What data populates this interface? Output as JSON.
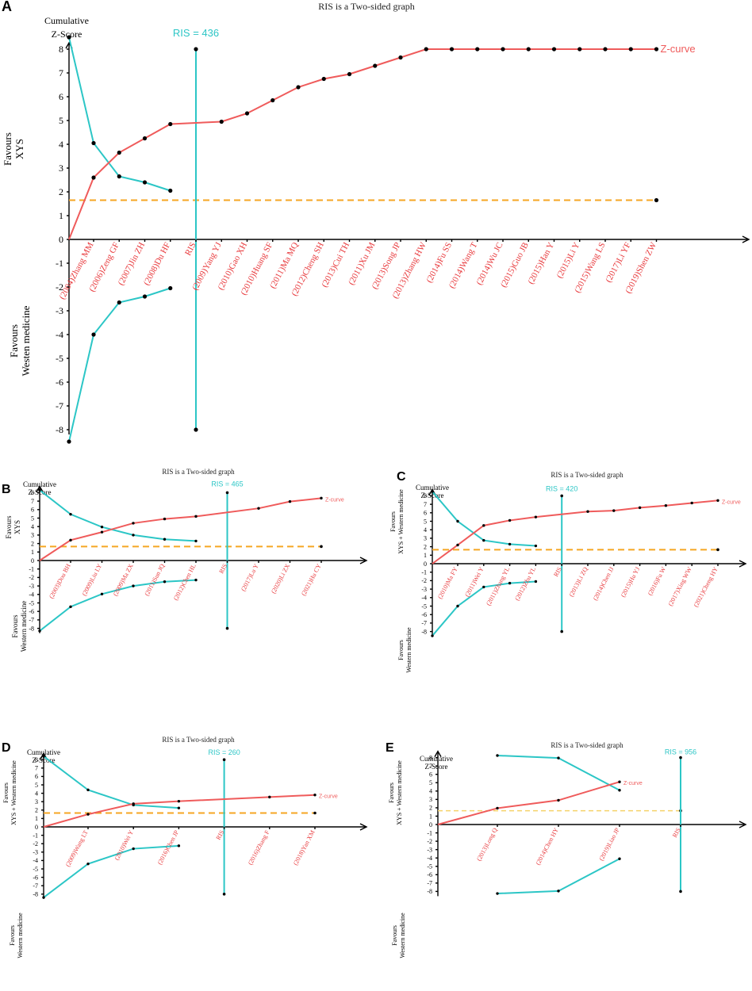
{
  "chart_data": [
    {
      "panel": "A",
      "type": "line",
      "title": "RIS is a Two-sided graph",
      "ylabel": "Cumulative Z-Score",
      "favours_upper": "Favours XYS",
      "favours_lower": "Westen medicine",
      "favours_lower_prefix": "Favours",
      "ylim": [
        -8,
        8
      ],
      "yticks": [
        -8,
        -7,
        -6,
        -5,
        -4,
        -3,
        -2,
        -1,
        0,
        1,
        2,
        3,
        4,
        5,
        6,
        7,
        8
      ],
      "categories": [
        "(2004)Zhang MM",
        "(2006)Zeng GF",
        "(2007)Jin ZH",
        "(2008)Du HF",
        "RIS",
        "(2009)Yang YJ",
        "(2010)Gao XH",
        "(2010)Huang SF",
        "(2011)Ma MQ",
        "(2012)Cheng SH",
        "(2013)Cui TH",
        "(2011)Xu JM",
        "(2013)Song JP",
        "(2013)Zhang HW",
        "(2014)Fu SS",
        "(2014)Wang T",
        "(2014)Wu JC",
        "(2015)Guo JB",
        "(2015)Han Y",
        "(2015)Li Y",
        "(2015)Wang LS",
        "(2017)Li YF",
        "(2019)Shen ZW"
      ],
      "ris_label": "RIS = 436",
      "ris_index": 4,
      "zcurve_label": "Z-curve",
      "zcurve": [
        [
          0,
          2.6
        ],
        [
          1,
          3.65
        ],
        [
          2,
          4.25
        ],
        [
          3,
          4.85
        ],
        [
          5,
          4.95
        ],
        [
          6,
          5.3
        ],
        [
          7,
          5.85
        ],
        [
          8,
          6.4
        ],
        [
          9,
          6.75
        ],
        [
          10,
          6.95
        ],
        [
          11,
          7.3
        ],
        [
          12,
          7.65
        ],
        [
          13,
          8
        ],
        [
          14,
          8
        ],
        [
          15,
          8
        ],
        [
          16,
          8
        ],
        [
          17,
          8
        ],
        [
          18,
          8
        ],
        [
          19,
          8
        ],
        [
          20,
          8
        ],
        [
          21,
          8
        ],
        [
          22,
          8
        ]
      ],
      "upper_boundary": [
        [
          -1,
          8.5
        ],
        [
          0,
          4.05
        ],
        [
          1,
          2.65
        ],
        [
          2,
          2.4
        ],
        [
          3,
          2.05
        ]
      ],
      "lower_boundary": [
        [
          -1,
          -8.5
        ],
        [
          0,
          -4.0
        ],
        [
          1,
          -2.65
        ],
        [
          2,
          -2.4
        ],
        [
          3,
          -2.05
        ]
      ],
      "significance_z": 1.65
    },
    {
      "panel": "B",
      "type": "line",
      "title": "RIS is a Two-sided graph",
      "ylabel": "Cumulative Z-Score",
      "favours_upper": "Favours XYS",
      "favours_lower": "Western medicine",
      "favours_lower_prefix": "Favours",
      "ylim": [
        -8,
        8
      ],
      "yticks": [
        -8,
        -7,
        -6,
        -5,
        -4,
        -3,
        -2,
        -1,
        0,
        1,
        2,
        3,
        4,
        5,
        6,
        7,
        8
      ],
      "categories": [
        "(2003)Dou BH",
        "(2009)Liu LY",
        "(2009)Ma ZX",
        "(2011)Sun JQ",
        "(2012)Chen HL",
        "RIS",
        "(2017)Lu Y",
        "(2020)Li ZX",
        "(2021)Hu CY"
      ],
      "ris_label": "RIS = 465",
      "ris_index": 5,
      "zcurve_label": "Z-curve",
      "zcurve": [
        [
          0,
          2.4
        ],
        [
          1,
          3.35
        ],
        [
          2,
          4.4
        ],
        [
          3,
          4.9
        ],
        [
          4,
          5.2
        ],
        [
          6,
          6.15
        ],
        [
          7,
          6.95
        ],
        [
          8,
          7.35
        ]
      ],
      "upper_boundary": [
        [
          -1,
          8.3
        ],
        [
          0,
          5.45
        ],
        [
          1,
          3.95
        ],
        [
          2,
          3.0
        ],
        [
          3,
          2.5
        ],
        [
          4,
          2.3
        ]
      ],
      "lower_boundary": [
        [
          -1,
          -8.3
        ],
        [
          0,
          -5.45
        ],
        [
          1,
          -3.95
        ],
        [
          2,
          -3.0
        ],
        [
          3,
          -2.5
        ],
        [
          4,
          -2.3
        ]
      ],
      "significance_z": 1.65
    },
    {
      "panel": "C",
      "type": "line",
      "title": "RIS is a Two-sided graph",
      "ylabel": "Cumulative Z-Score",
      "favours_upper": "XYS + Western medicine",
      "favours_upper_prefix": "Favours",
      "favours_lower": "Western medicine",
      "favours_lower_prefix": "Favours",
      "ylim": [
        -8,
        8
      ],
      "yticks": [
        -8,
        -7,
        -6,
        -5,
        -4,
        -3,
        -2,
        -1,
        0,
        1,
        2,
        3,
        4,
        5,
        6,
        7,
        8
      ],
      "categories": [
        "(2010)Ma FY",
        "(2011)Wei Y",
        "(2011)Zhang YL",
        "(2012)Zhu YL",
        "RIS",
        "(2013)Li ZQ",
        "(2014)Chen JJ",
        "(2015)Hu YJ",
        "(2016)Fu W",
        "(2017)Xing WW",
        "(2021)Cheng HY"
      ],
      "ris_label": "RIS = 420",
      "ris_index": 4,
      "zcurve_label": "Z-curve",
      "zcurve": [
        [
          0,
          2.2
        ],
        [
          1,
          4.5
        ],
        [
          2,
          5.1
        ],
        [
          3,
          5.5
        ],
        [
          5,
          6.15
        ],
        [
          6,
          6.25
        ],
        [
          7,
          6.6
        ],
        [
          8,
          6.85
        ],
        [
          9,
          7.15
        ],
        [
          10,
          7.45
        ]
      ],
      "upper_boundary": [
        [
          -1,
          8.5
        ],
        [
          0,
          5.0
        ],
        [
          1,
          2.75
        ],
        [
          2,
          2.3
        ],
        [
          3,
          2.1
        ]
      ],
      "lower_boundary": [
        [
          -1,
          -8.5
        ],
        [
          0,
          -5.0
        ],
        [
          1,
          -2.75
        ],
        [
          2,
          -2.3
        ],
        [
          3,
          -2.1
        ]
      ],
      "significance_z": 1.65
    },
    {
      "panel": "D",
      "type": "line",
      "title": "RIS is a Two-sided graph",
      "ylabel": "Cumulative Z-Score",
      "favours_upper": "XYS + Western medicine",
      "favours_upper_prefix": "Favours",
      "favours_lower": "Western medicine",
      "favours_lower_prefix": "Favours",
      "ylim": [
        -8,
        8
      ],
      "yticks": [
        -8,
        -7,
        -6,
        -5,
        -4,
        -3,
        -2,
        -1,
        0,
        1,
        2,
        3,
        4,
        5,
        6,
        7,
        8
      ],
      "categories": [
        "(2009)Wang LT",
        "(2010)Wei Y",
        "(2016)Chen JP",
        "RIS",
        "(2016)Zhang F",
        "(2018)Yan XM"
      ],
      "ris_label": "RIS = 260",
      "ris_index": 3,
      "zcurve_label": "Z-curve",
      "zcurve": [
        [
          0,
          1.5
        ],
        [
          1,
          2.75
        ],
        [
          2,
          3.05
        ],
        [
          4,
          3.55
        ],
        [
          5,
          3.8
        ]
      ],
      "upper_boundary": [
        [
          -1,
          8.4
        ],
        [
          0,
          4.4
        ],
        [
          1,
          2.6
        ],
        [
          2,
          2.25
        ]
      ],
      "lower_boundary": [
        [
          -1,
          -8.4
        ],
        [
          0,
          -4.4
        ],
        [
          1,
          -2.6
        ],
        [
          2,
          -2.25
        ]
      ],
      "significance_z": 1.65
    },
    {
      "panel": "E",
      "type": "line",
      "title": "RIS is a Two-sided graph",
      "ylabel": "Cumulative Z-Score",
      "favours_upper": "XYS + Western medicine",
      "favours_upper_prefix": "Favours",
      "favours_lower": "Western medicine",
      "favours_lower_prefix": "Favours",
      "ylim": [
        -8,
        8
      ],
      "yticks": [
        -8,
        -7,
        -6,
        -5,
        -4,
        -3,
        -2,
        -1,
        0,
        1,
        2,
        3,
        4,
        5,
        6,
        7,
        8
      ],
      "categories": [
        "(2013)Long Q",
        "(2014)Chen HY",
        "(2019)Liao JP",
        "RIS"
      ],
      "ris_label": "RIS = 956",
      "ris_index": 3,
      "zcurve_label": "Z-curve",
      "zcurve": [
        [
          0,
          1.95
        ],
        [
          1,
          2.9
        ],
        [
          2,
          5.1
        ]
      ],
      "upper_boundary": [
        [
          0,
          8.25
        ],
        [
          1,
          7.95
        ],
        [
          2,
          4.1
        ]
      ],
      "lower_boundary": [
        [
          0,
          -8.25
        ],
        [
          1,
          -7.95
        ],
        [
          2,
          -4.1
        ]
      ],
      "significance_z": 1.65
    }
  ]
}
